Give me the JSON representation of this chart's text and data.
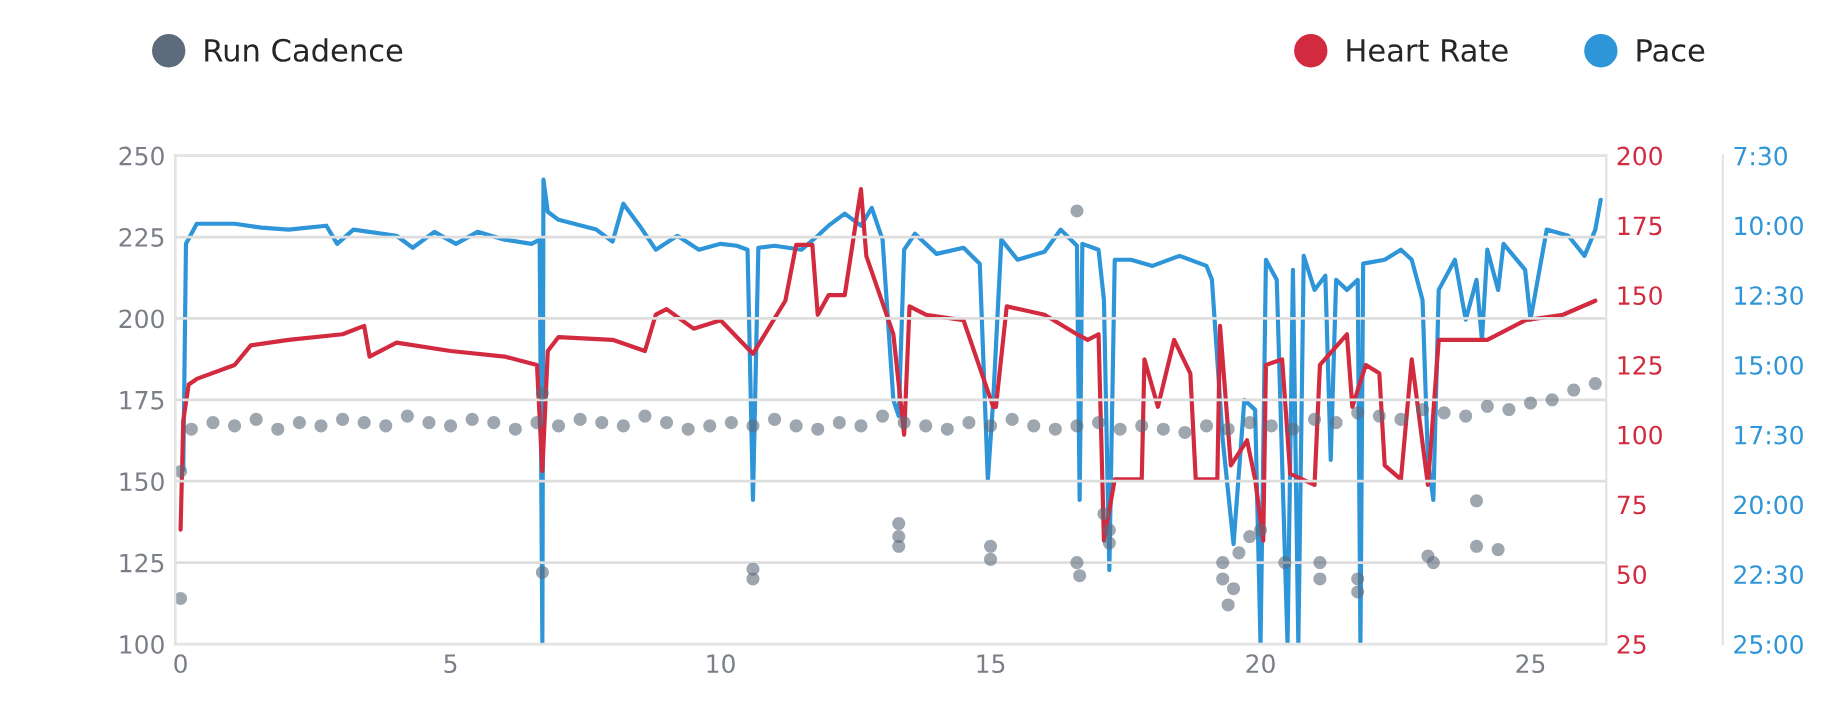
{
  "chart_data": {
    "type": "line",
    "legend": "top",
    "grid": "y",
    "xlim": [
      -0.1,
      26.4
    ],
    "xticks": [
      0,
      5,
      10,
      15,
      20,
      25
    ],
    "ylim": [
      100,
      250
    ],
    "yticks": [
      100,
      125,
      150,
      175,
      200,
      225,
      250
    ],
    "y2lim": [
      25,
      200
    ],
    "y2ticks": [
      25,
      50,
      75,
      100,
      125,
      150,
      175,
      200
    ],
    "y3lim": [
      25,
      7.5
    ],
    "y3ticks": [
      {
        "value": 25,
        "label": "25:00"
      },
      {
        "value": 22.5,
        "label": "22:30"
      },
      {
        "value": 20,
        "label": "20:00"
      },
      {
        "value": 17.5,
        "label": "17:30"
      },
      {
        "value": 15,
        "label": "15:00"
      },
      {
        "value": 12.5,
        "label": "12:30"
      },
      {
        "value": 10,
        "label": "10:00"
      },
      {
        "value": 7.5,
        "label": "7:30"
      }
    ],
    "series": [
      {
        "name": "Run Cadence",
        "type": "scatter",
        "axis": "y",
        "color": "#5d6b7c",
        "x": [
          0.2,
          0.6,
          1.0,
          1.4,
          1.8,
          2.2,
          2.6,
          3.0,
          3.4,
          3.8,
          4.2,
          4.6,
          5.0,
          5.4,
          5.8,
          6.2,
          6.6,
          7.0,
          7.4,
          7.8,
          8.2,
          8.6,
          9.0,
          9.4,
          9.8,
          10.2,
          10.6,
          11.0,
          11.4,
          11.8,
          12.2,
          12.6,
          13.0,
          13.4,
          13.8,
          14.2,
          14.6,
          15.0,
          15.4,
          15.8,
          16.2,
          16.6,
          17.0,
          17.4,
          17.8,
          18.2,
          18.6,
          19.0,
          19.4,
          19.8,
          20.2,
          20.6,
          21.0,
          21.4,
          21.8,
          22.2,
          22.6,
          23.0,
          23.4,
          23.8,
          24.2,
          24.6,
          25.0,
          25.4,
          25.8,
          26.2,
          0,
          0,
          6.7,
          6.7,
          10.6,
          10.6,
          13.3,
          13.3,
          13.3,
          15,
          15,
          16.6,
          16.6,
          16.65,
          17.1,
          17.2,
          17.2,
          19.3,
          19.3,
          19.4,
          19.5,
          19.6,
          19.8,
          20,
          20.45,
          21.1,
          21.1,
          21.8,
          21.8,
          23.1,
          23.2,
          24,
          24,
          24.4
        ],
        "values": [
          166,
          168,
          167,
          169,
          166,
          168,
          167,
          169,
          168,
          167,
          170,
          168,
          167,
          169,
          168,
          166,
          168,
          167,
          169,
          168,
          167,
          170,
          168,
          166,
          167,
          168,
          167,
          169,
          167,
          166,
          168,
          167,
          170,
          168,
          167,
          166,
          168,
          167,
          169,
          167,
          166,
          167,
          168,
          166,
          167,
          166,
          165,
          167,
          166,
          168,
          167,
          166,
          169,
          168,
          171,
          170,
          169,
          172,
          171,
          170,
          173,
          172,
          174,
          175,
          178,
          180,
          114,
          153,
          122,
          177,
          123,
          120,
          137,
          133,
          130,
          130,
          126,
          233,
          125,
          121,
          140,
          135,
          131,
          125,
          120,
          112,
          117,
          128,
          133,
          135,
          125,
          125,
          120,
          120,
          116,
          127,
          125,
          144,
          130,
          129
        ]
      },
      {
        "name": "Heart Rate",
        "axis": "y2",
        "color": "#d22a3f",
        "x": [
          0.0,
          0.05,
          0.15,
          0.3,
          1.0,
          1.3,
          2.0,
          3.0,
          3.4,
          3.5,
          4.0,
          5.0,
          6.0,
          6.6,
          6.7,
          6.8,
          7.0,
          8.0,
          8.6,
          8.8,
          9.0,
          9.5,
          10.0,
          10.6,
          11.2,
          11.4,
          11.7,
          11.8,
          12.0,
          12.3,
          12.6,
          12.7,
          12.95,
          13.2,
          13.4,
          13.5,
          13.8,
          14.5,
          15.05,
          15.1,
          15.3,
          16.0,
          16.6,
          16.8,
          17.0,
          17.1,
          17.3,
          17.8,
          17.85,
          18.1,
          18.4,
          18.7,
          18.8,
          19.2,
          19.25,
          19.45,
          19.75,
          19.9,
          20.05,
          20.1,
          20.4,
          20.55,
          21.0,
          21.1,
          21.6,
          21.7,
          21.95,
          22.2,
          22.3,
          22.6,
          22.8,
          23.1,
          23.3,
          23.9,
          24.2,
          24.9,
          25.6,
          26.2
        ],
        "values": [
          66,
          105,
          118,
          120,
          125,
          132,
          134,
          136,
          139,
          128,
          133,
          130,
          128,
          125,
          87,
          130,
          135,
          134,
          130,
          143,
          145,
          138,
          141,
          129,
          148,
          168,
          168,
          143,
          150,
          150,
          188,
          164,
          150,
          136,
          100,
          146,
          143,
          141,
          110,
          110,
          146,
          143,
          136,
          134,
          136,
          62,
          84,
          84,
          127,
          110,
          134,
          122,
          84,
          84,
          139,
          89,
          98,
          84,
          62,
          125,
          127,
          86,
          82,
          125,
          136,
          110,
          125,
          122,
          89,
          84,
          127,
          82,
          134,
          134,
          134,
          141,
          143,
          148
        ]
      },
      {
        "name": "Pace",
        "axis": "y3",
        "color": "#2e95d8",
        "x": [
          0.05,
          0.1,
          0.3,
          1.0,
          1.5,
          2.0,
          2.7,
          2.9,
          3.2,
          4.0,
          4.3,
          4.7,
          5.1,
          5.5,
          6.0,
          6.5,
          6.65,
          6.7,
          6.72,
          6.8,
          7.0,
          7.7,
          8.0,
          8.2,
          8.5,
          8.8,
          9.2,
          9.6,
          10.0,
          10.3,
          10.5,
          10.6,
          10.7,
          11.0,
          11.5,
          11.8,
          12.0,
          12.3,
          12.6,
          12.8,
          13.0,
          13.2,
          13.3,
          13.4,
          13.6,
          14.0,
          14.5,
          14.8,
          14.95,
          15.05,
          15.2,
          15.5,
          16.0,
          16.3,
          16.6,
          16.65,
          16.7,
          17.0,
          17.1,
          17.2,
          17.3,
          17.6,
          18.0,
          18.5,
          19.0,
          19.1,
          19.3,
          19.5,
          19.7,
          19.9,
          20.0,
          20.1,
          20.3,
          20.5,
          20.6,
          20.7,
          20.8,
          21.0,
          21.2,
          21.3,
          21.4,
          21.6,
          21.8,
          21.85,
          21.9,
          22.3,
          22.6,
          22.8,
          23.0,
          23.1,
          23.2,
          23.3,
          23.6,
          23.8,
          24.0,
          24.1,
          24.2,
          24.4,
          24.5,
          24.9,
          25.0,
          25.3,
          25.7,
          26.0,
          26.2,
          26.3
        ],
        "values": [
          18.76,
          10.66,
          9.94,
          9.94,
          10.08,
          10.15,
          10.01,
          10.66,
          10.15,
          10.37,
          10.8,
          10.23,
          10.66,
          10.23,
          10.51,
          10.66,
          10.51,
          25,
          8.36,
          9.51,
          9.8,
          10.15,
          10.58,
          9.22,
          10.01,
          10.87,
          10.37,
          10.87,
          10.66,
          10.73,
          10.87,
          19.84,
          10.8,
          10.73,
          10.87,
          10.37,
          10.01,
          9.58,
          10.01,
          9.37,
          10.51,
          16.25,
          16.83,
          10.87,
          10.3,
          11.02,
          10.8,
          11.37,
          19.12,
          16.25,
          10.51,
          11.23,
          10.94,
          10.15,
          10.73,
          19.84,
          10.66,
          10.87,
          12.67,
          22.35,
          11.23,
          11.23,
          11.45,
          11.09,
          11.45,
          11.95,
          17.69,
          21.42,
          16.25,
          16.61,
          25,
          11.23,
          11.95,
          25,
          11.59,
          25,
          11.09,
          12.31,
          11.8,
          18.4,
          11.95,
          12.31,
          11.95,
          25,
          11.37,
          11.23,
          10.87,
          11.23,
          12.67,
          18.4,
          19.84,
          12.31,
          11.23,
          13.38,
          11.95,
          14.1,
          10.87,
          12.31,
          10.66,
          11.59,
          13.38,
          10.15,
          10.37,
          11.09,
          10.15,
          9.08
        ]
      }
    ]
  }
}
